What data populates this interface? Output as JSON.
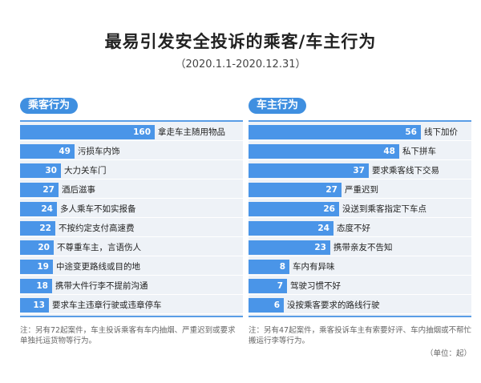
{
  "header": {
    "title": "最易引发安全投诉的乘客/车主行为",
    "subtitle": "（2020.1.1-2020.12.31）"
  },
  "panels": [
    {
      "label": "乘客行为"
    },
    {
      "label": "车主行为"
    }
  ],
  "notes": {
    "left": "注：另有72起案件，车主投诉乘客有车内抽烟、严重迟到或要求单独托运货物等行为。",
    "right": "注：另有47起案件，乘客投诉车主有索要好评、车内抽烟或不帮忙搬运行李等行为。",
    "unit": "（单位：起）"
  },
  "colors": {
    "bar": "#4a95e8",
    "accent": "#3f8fe0",
    "row_bg": "#eef2f7"
  },
  "chart_data": [
    {
      "type": "bar",
      "orientation": "horizontal",
      "title": "乘客行为",
      "categories": [
        "拿走车主随用物品",
        "污损车内饰",
        "大力关车门",
        "酒后滋事",
        "多人乘车不如实报备",
        "不按约定支付高速费",
        "不尊重车主，言语伤人",
        "中途变更路线或目的地",
        "携带大件行李不提前沟通",
        "要求车主违章行驶或违章停车"
      ],
      "values": [
        160,
        49,
        30,
        27,
        24,
        22,
        20,
        19,
        18,
        13
      ]
    },
    {
      "type": "bar",
      "orientation": "horizontal",
      "title": "车主行为",
      "categories": [
        "线下加价",
        "私下拼车",
        "要求乘客线下交易",
        "严重迟到",
        "没送到乘客指定下车点",
        "态度不好",
        "携带亲友不告知",
        "车内有异味",
        "驾驶习惯不好",
        "没按乘客要求的路线行驶"
      ],
      "values": [
        56,
        48,
        37,
        27,
        26,
        24,
        23,
        8,
        7,
        6
      ]
    }
  ]
}
